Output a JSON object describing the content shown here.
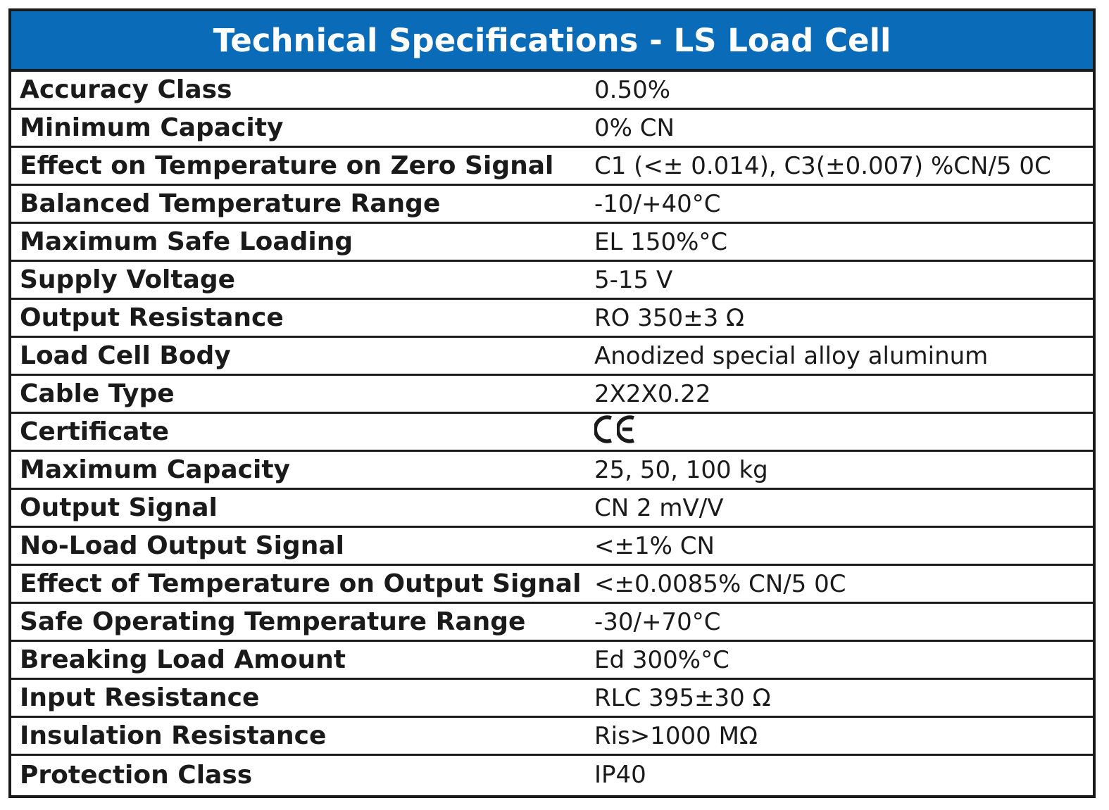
{
  "table": {
    "title": "Technical Specifications - LS Load Cell",
    "rows": [
      {
        "label": "Accuracy Class",
        "value": "0.50%"
      },
      {
        "label": "Minimum Capacity",
        "value": "0% CN"
      },
      {
        "label": "Effect on Temperature on Zero Signal",
        "value": "C1 (<± 0.014), C3(±0.007) %CN/5 0C"
      },
      {
        "label": "Balanced Temperature Range",
        "value": "-10/+40°C"
      },
      {
        "label": "Maximum Safe Loading",
        "value": "EL 150%°C"
      },
      {
        "label": "Supply Voltage",
        "value": "5-15 V"
      },
      {
        "label": "Output Resistance",
        "value": "RO 350±3 Ω"
      },
      {
        "label": "Load Cell Body",
        "value": "Anodized special alloy aluminum"
      },
      {
        "label": "Cable Type",
        "value": "2X2X0.22"
      },
      {
        "label": "Certificate",
        "value": "",
        "icon": "ce-mark-icon"
      },
      {
        "label": "Maximum Capacity",
        "value": "25, 50, 100 kg"
      },
      {
        "label": "Output Signal",
        "value": "CN 2 mV/V"
      },
      {
        "label": "No-Load Output Signal",
        "value": "<±1% CN"
      },
      {
        "label": "Effect of Temperature on Output Signal",
        "value": "<±0.0085% CN/5 0C"
      },
      {
        "label": "Safe Operating Temperature Range",
        "value": "-30/+70°C"
      },
      {
        "label": "Breaking Load Amount",
        "value": "Ed 300%°C"
      },
      {
        "label": "Input Resistance",
        "value": "RLC 395±30 Ω"
      },
      {
        "label": "Insulation Resistance",
        "value": "Ris>1000 MΩ"
      },
      {
        "label": "Protection Class",
        "value": "IP40"
      }
    ]
  },
  "colors": {
    "header_bg": "#0a6cb8",
    "header_text": "#ffffff",
    "border": "#1a1a1a",
    "text": "#1a1a1a"
  }
}
